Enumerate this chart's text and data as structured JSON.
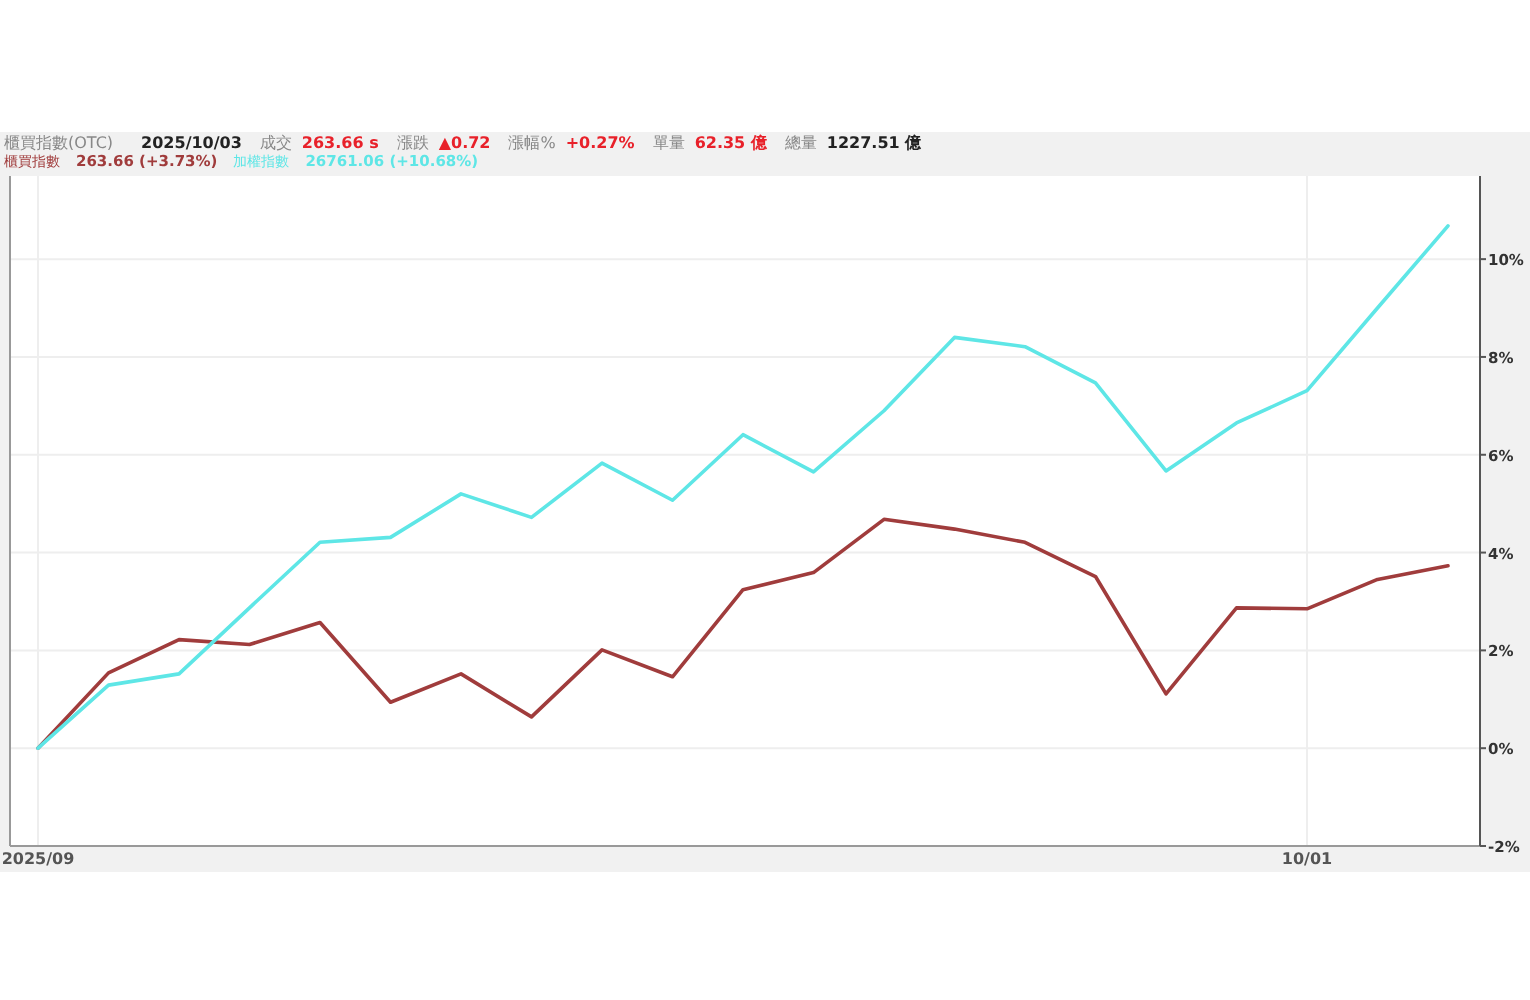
{
  "chart_data": {
    "type": "line",
    "title": "櫃買指數(OTC)",
    "annotations": [
      "2025/10/03",
      "成交",
      "263.66 s",
      "漲跌",
      "▲0.72",
      "漲幅%",
      "+0.27%",
      "單量",
      "62.35 億",
      "總量",
      "1227.51 億",
      "263.66 (+3.73%)",
      "26761.06 (+10.68%)"
    ],
    "categories": [
      "2025/09",
      null,
      null,
      null,
      null,
      null,
      null,
      null,
      null,
      null,
      null,
      null,
      null,
      null,
      null,
      null,
      null,
      null,
      "10/01",
      null,
      null
    ],
    "series": [
      {
        "name": "櫃買指數",
        "color": "#a03c3c",
        "values": [
          0,
          1.54,
          2.22,
          2.12,
          2.57,
          0.94,
          1.52,
          0.64,
          2.01,
          1.46,
          3.24,
          3.59,
          4.68,
          4.48,
          4.21,
          3.51,
          1.11,
          2.87,
          2.85,
          3.45,
          3.73
        ]
      },
      {
        "name": "加權指數",
        "color": "#5ee6e6",
        "values": [
          0,
          1.29,
          1.52,
          2.87,
          4.21,
          4.31,
          5.2,
          4.72,
          5.83,
          5.07,
          6.41,
          5.65,
          6.9,
          8.4,
          8.21,
          7.47,
          5.67,
          6.65,
          7.31,
          9.0,
          10.68
        ]
      }
    ],
    "ylim": [
      -2,
      11.7
    ],
    "yticks": [
      {
        "value": -2,
        "label": "-2%"
      },
      {
        "value": 0,
        "label": "0%"
      },
      {
        "value": 2,
        "label": "2%"
      },
      {
        "value": 4,
        "label": "4%"
      },
      {
        "value": 6,
        "label": "6%"
      },
      {
        "value": 8,
        "label": "8%"
      },
      {
        "value": 10,
        "label": "10%"
      }
    ],
    "grid": true,
    "legend": "top left",
    "marker": "none",
    "line_style": "solid"
  }
}
